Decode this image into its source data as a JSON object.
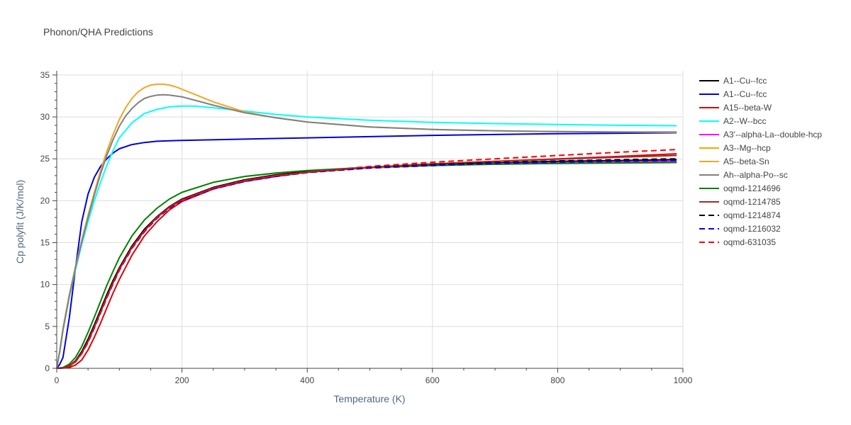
{
  "chart_data": {
    "type": "line",
    "title": "Phonon/QHA Predictions",
    "xlabel": "Temperature (K)",
    "ylabel": "Cp polyfit (J/K/mol)",
    "xlim": [
      0,
      1000
    ],
    "ylim": [
      0,
      35.5
    ],
    "xticks": [
      0,
      200,
      400,
      600,
      800,
      1000
    ],
    "yticks": [
      0,
      5,
      10,
      15,
      20,
      25,
      30,
      35
    ],
    "grid": true,
    "legend_position": "right",
    "series": [
      {
        "name": "A1--Cu--fcc",
        "color": "#000000",
        "dash": "solid",
        "x": [
          0,
          10,
          20,
          30,
          40,
          50,
          60,
          70,
          80,
          90,
          100,
          120,
          140,
          160,
          180,
          200,
          250,
          300,
          350,
          400,
          500,
          600,
          700,
          800,
          900,
          990
        ],
        "y": [
          0,
          0.05,
          0.3,
          0.9,
          2.0,
          3.5,
          5.2,
          7.0,
          8.8,
          10.5,
          12.0,
          14.6,
          16.6,
          18.1,
          19.3,
          20.2,
          21.6,
          22.5,
          23.1,
          23.5,
          24.0,
          24.3,
          24.5,
          24.7,
          24.8,
          24.9
        ]
      },
      {
        "name": "A1--Cu--fcc",
        "color": "#0000dd",
        "dash": "solid",
        "x": [
          0,
          5,
          10,
          20,
          30,
          40,
          50,
          60,
          70,
          80,
          90,
          100,
          120,
          140,
          160,
          180,
          200,
          300,
          400,
          500,
          600,
          700,
          800,
          900,
          990
        ],
        "y": [
          0,
          0.5,
          1.3,
          6.0,
          12.0,
          17.5,
          20.8,
          22.8,
          24.1,
          25.0,
          25.7,
          26.2,
          26.7,
          26.95,
          27.1,
          27.15,
          27.2,
          27.35,
          27.5,
          27.65,
          27.8,
          27.9,
          28.0,
          28.05,
          28.1
        ]
      },
      {
        "name": "A15--beta-W",
        "color": "#dd0000",
        "dash": "solid",
        "x": [
          0,
          10,
          20,
          30,
          40,
          50,
          60,
          70,
          80,
          90,
          100,
          120,
          140,
          160,
          180,
          200,
          250,
          300,
          350,
          400,
          500,
          600,
          700,
          800,
          900,
          990
        ],
        "y": [
          0,
          0.02,
          0.1,
          0.4,
          1.0,
          2.2,
          3.7,
          5.4,
          7.2,
          9.0,
          10.6,
          13.5,
          15.8,
          17.5,
          18.9,
          19.9,
          21.4,
          22.3,
          22.9,
          23.4,
          24.0,
          24.4,
          24.7,
          25.0,
          25.3,
          25.6
        ]
      },
      {
        "name": "A2--W--bcc",
        "color": "#00ffff",
        "dash": "solid",
        "x": [
          0,
          5,
          10,
          20,
          30,
          40,
          50,
          60,
          70,
          80,
          90,
          100,
          120,
          140,
          160,
          180,
          200,
          220,
          250,
          300,
          350,
          400,
          500,
          600,
          700,
          800,
          900,
          990
        ],
        "y": [
          0,
          2.0,
          4.5,
          8.5,
          11.8,
          14.8,
          17.5,
          20.0,
          22.2,
          24.2,
          26.0,
          27.5,
          29.3,
          30.4,
          30.9,
          31.2,
          31.3,
          31.3,
          31.1,
          30.7,
          30.3,
          30.0,
          29.6,
          29.35,
          29.2,
          29.1,
          29.0,
          28.95
        ]
      },
      {
        "name": "A3'--alpha-La--double-hcp",
        "color": "#ff00ff",
        "dash": "solid",
        "x": [
          0,
          10,
          20,
          30,
          40,
          50,
          60,
          70,
          80,
          90,
          100,
          120,
          140,
          160,
          180,
          200,
          250,
          300,
          350,
          400,
          500,
          600,
          700,
          800,
          900,
          990
        ],
        "y": [
          0,
          0.04,
          0.25,
          0.8,
          1.8,
          3.2,
          4.9,
          6.7,
          8.5,
          10.2,
          11.8,
          14.4,
          16.4,
          18.0,
          19.2,
          20.1,
          21.5,
          22.4,
          23.0,
          23.4,
          23.9,
          24.2,
          24.4,
          24.55,
          24.65,
          24.7
        ]
      },
      {
        "name": "A3--Mg--hcp",
        "color": "#ffa500",
        "dash": "solid",
        "x": [
          0,
          10,
          20,
          30,
          40,
          50,
          60,
          70,
          80,
          90,
          100,
          120,
          140,
          160,
          180,
          200,
          250,
          300,
          350,
          400,
          500,
          600,
          700,
          800,
          900,
          990
        ],
        "y": [
          0,
          0.04,
          0.25,
          0.8,
          1.8,
          3.2,
          4.9,
          6.7,
          8.5,
          10.2,
          11.8,
          14.4,
          16.4,
          18.0,
          19.2,
          20.1,
          21.5,
          22.4,
          23.0,
          23.4,
          23.9,
          24.2,
          24.35,
          24.45,
          24.5,
          24.55
        ]
      },
      {
        "name": "A5--beta-Sn",
        "color": "#f5a623",
        "dash": "solid",
        "x": [
          0,
          5,
          10,
          20,
          30,
          40,
          50,
          60,
          70,
          80,
          90,
          100,
          110,
          120,
          130,
          140,
          150,
          160,
          170,
          180,
          190,
          200,
          220,
          250,
          300,
          350,
          400,
          500,
          600,
          700,
          800,
          900,
          990
        ],
        "y": [
          0,
          2.2,
          4.8,
          8.8,
          12.2,
          15.3,
          18.3,
          21.0,
          23.6,
          25.9,
          27.9,
          29.7,
          31.1,
          32.2,
          33.0,
          33.5,
          33.8,
          33.9,
          33.9,
          33.8,
          33.6,
          33.3,
          32.7,
          31.8,
          30.6,
          29.9,
          29.4,
          28.8,
          28.5,
          28.35,
          28.25,
          28.2,
          28.15
        ]
      },
      {
        "name": "Ah--alpha-Po--sc",
        "color": "#808080",
        "dash": "solid",
        "x": [
          0,
          5,
          10,
          20,
          30,
          40,
          50,
          60,
          70,
          80,
          90,
          100,
          110,
          120,
          130,
          140,
          150,
          160,
          170,
          180,
          190,
          200,
          220,
          250,
          300,
          350,
          400,
          500,
          600,
          700,
          800,
          900,
          990
        ],
        "y": [
          0,
          2.1,
          4.6,
          8.6,
          12.0,
          15.1,
          18.0,
          20.7,
          23.2,
          25.4,
          27.3,
          28.9,
          30.1,
          31.0,
          31.7,
          32.2,
          32.45,
          32.6,
          32.65,
          32.6,
          32.5,
          32.4,
          32.0,
          31.4,
          30.5,
          29.9,
          29.4,
          28.8,
          28.5,
          28.35,
          28.25,
          28.2,
          28.2
        ]
      },
      {
        "name": "oqmd-1214696",
        "color": "#008000",
        "dash": "solid",
        "x": [
          0,
          10,
          20,
          30,
          40,
          50,
          60,
          70,
          80,
          90,
          100,
          120,
          140,
          160,
          180,
          200,
          250,
          300,
          350,
          400,
          500,
          600,
          700,
          800,
          900,
          990
        ],
        "y": [
          0,
          0.1,
          0.5,
          1.3,
          2.6,
          4.3,
          6.1,
          8.0,
          9.9,
          11.6,
          13.2,
          15.8,
          17.7,
          19.1,
          20.2,
          21.0,
          22.2,
          22.9,
          23.3,
          23.6,
          24.0,
          24.2,
          24.35,
          24.45,
          24.5,
          24.55
        ]
      },
      {
        "name": "oqmd-1214785",
        "color": "#a52a2a",
        "dash": "solid",
        "x": [
          0,
          10,
          20,
          30,
          40,
          50,
          60,
          70,
          80,
          90,
          100,
          120,
          140,
          160,
          180,
          200,
          250,
          300,
          350,
          400,
          500,
          600,
          700,
          800,
          900,
          990
        ],
        "y": [
          0,
          0.04,
          0.25,
          0.8,
          1.8,
          3.2,
          4.9,
          6.7,
          8.5,
          10.2,
          11.8,
          14.4,
          16.4,
          18.0,
          19.2,
          20.1,
          21.5,
          22.4,
          23.0,
          23.4,
          24.0,
          24.4,
          24.7,
          24.95,
          25.2,
          25.4
        ]
      },
      {
        "name": "oqmd-1214874",
        "color": "#000000",
        "dash": "dash",
        "x": [
          0,
          10,
          20,
          30,
          40,
          50,
          60,
          70,
          80,
          90,
          100,
          120,
          140,
          160,
          180,
          200,
          250,
          300,
          350,
          400,
          500,
          600,
          700,
          800,
          900,
          990
        ],
        "y": [
          0,
          0.04,
          0.25,
          0.8,
          1.8,
          3.2,
          4.9,
          6.7,
          8.5,
          10.2,
          11.8,
          14.4,
          16.4,
          18.0,
          19.2,
          20.1,
          21.5,
          22.4,
          23.0,
          23.4,
          23.95,
          24.3,
          24.55,
          24.75,
          24.9,
          25.0
        ]
      },
      {
        "name": "oqmd-1216032",
        "color": "#0000ff",
        "dash": "dash",
        "x": [
          0,
          10,
          20,
          30,
          40,
          50,
          60,
          70,
          80,
          90,
          100,
          120,
          140,
          160,
          180,
          200,
          250,
          300,
          350,
          400,
          500,
          600,
          700,
          800,
          900,
          990
        ],
        "y": [
          0,
          0.04,
          0.24,
          0.78,
          1.75,
          3.1,
          4.8,
          6.6,
          8.4,
          10.1,
          11.7,
          14.3,
          16.3,
          17.9,
          19.1,
          20.0,
          21.4,
          22.3,
          22.9,
          23.35,
          23.9,
          24.2,
          24.45,
          24.6,
          24.7,
          24.8
        ]
      },
      {
        "name": "oqmd-631035",
        "color": "#ff0000",
        "dash": "dash",
        "x": [
          0,
          10,
          20,
          30,
          40,
          50,
          60,
          70,
          80,
          90,
          100,
          120,
          140,
          160,
          180,
          200,
          250,
          300,
          350,
          400,
          500,
          600,
          700,
          800,
          900,
          990
        ],
        "y": [
          0,
          0.04,
          0.25,
          0.8,
          1.8,
          3.2,
          4.9,
          6.7,
          8.5,
          10.2,
          11.8,
          14.4,
          16.4,
          18.0,
          19.2,
          20.1,
          21.5,
          22.4,
          23.0,
          23.4,
          24.1,
          24.6,
          25.0,
          25.4,
          25.8,
          26.1
        ]
      }
    ]
  }
}
